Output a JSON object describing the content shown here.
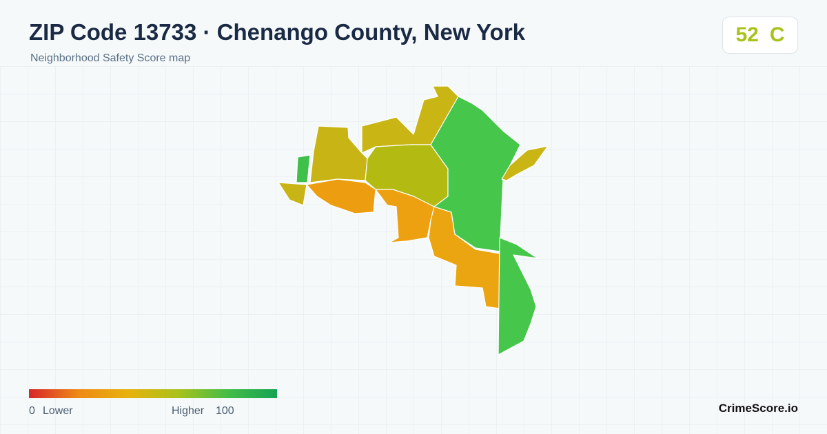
{
  "header": {
    "title": "ZIP Code 13733 · Chenango County, New York",
    "subtitle": "Neighborhood Safety Score map",
    "score": 52,
    "grade": "C"
  },
  "legend": {
    "min": 0,
    "low_label": "Lower",
    "high_label": "Higher",
    "max": 100
  },
  "footer": {
    "brand": "CrimeScore.io"
  }
}
